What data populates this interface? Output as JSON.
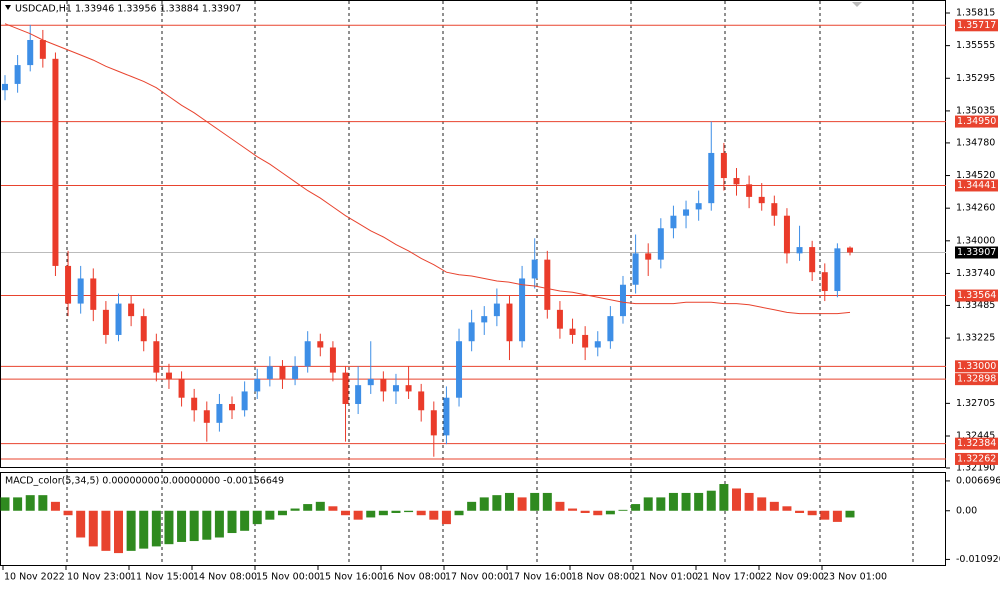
{
  "chart_data": {
    "type": "candlestick",
    "header": "USDCAD,H1  1.33946 1.33956 1.33884 1.33907",
    "bull_color": "#3d8ee6",
    "bear_color": "#ea3b2a",
    "ma_color": "#e8432e",
    "level_color": "#e8432e",
    "ylim": [
      1.3219,
      1.35815
    ],
    "yticks": [
      1.35815,
      1.35555,
      1.35295,
      1.35035,
      {
        "value": 1.3478,
        "label": "1.34780"
      },
      {
        "value": 1.3452,
        "label": "1.34520"
      },
      {
        "value": 1.3426,
        "label": "1.34260"
      },
      {
        "value": 1.34,
        "label": "1.34000"
      },
      {
        "value": 1.3374,
        "label": "1.33740"
      },
      1.33485,
      1.33225,
      1.32705,
      1.32445,
      {
        "value": 1.3219,
        "label": "1.32190"
      }
    ],
    "levels": [
      1.35717,
      {
        "value": 1.3495,
        "label": "1.34950"
      },
      1.34441,
      1.33564,
      {
        "value": 1.33,
        "label": "1.33000"
      },
      1.32898,
      1.32384,
      1.32262
    ],
    "current": 1.33907,
    "categories": [
      "10 Nov 2022",
      "10 Nov 23:00",
      "11 Nov 15:00",
      "14 Nov 08:00",
      "15 Nov 00:00",
      "15 Nov 16:00",
      "16 Nov 08:00",
      "17 Nov 00:00",
      "17 Nov 16:00",
      "18 Nov 08:00",
      "21 Nov 01:00",
      "21 Nov 17:00",
      "22 Nov 09:00",
      "23 Nov 01:00"
    ],
    "ohlc": [
      [
        1.352,
        1.3532,
        1.3512,
        1.3525
      ],
      [
        1.3525,
        1.3548,
        1.3518,
        1.354
      ],
      [
        1.354,
        1.3572,
        1.3535,
        1.356
      ],
      [
        1.356,
        1.3568,
        1.3538,
        1.3545
      ],
      [
        1.3545,
        1.355,
        1.3372,
        1.338
      ],
      [
        1.338,
        1.3392,
        1.334,
        1.335
      ],
      [
        1.335,
        1.338,
        1.3342,
        1.337
      ],
      [
        1.337,
        1.3378,
        1.3336,
        1.3345
      ],
      [
        1.3345,
        1.3352,
        1.3318,
        1.3325
      ],
      [
        1.3325,
        1.3358,
        1.332,
        1.335
      ],
      [
        1.335,
        1.3356,
        1.3332,
        1.334
      ],
      [
        1.334,
        1.3346,
        1.3312,
        1.332
      ],
      [
        1.332,
        1.3326,
        1.3288,
        1.3295
      ],
      [
        1.3295,
        1.3302,
        1.3282,
        1.329
      ],
      [
        1.329,
        1.3296,
        1.3268,
        1.3275
      ],
      [
        1.3275,
        1.3282,
        1.3256,
        1.3265
      ],
      [
        1.3265,
        1.3272,
        1.324,
        1.3255
      ],
      [
        1.3255,
        1.3278,
        1.3248,
        1.327
      ],
      [
        1.327,
        1.3276,
        1.3258,
        1.3265
      ],
      [
        1.3265,
        1.3288,
        1.326,
        1.328
      ],
      [
        1.328,
        1.3298,
        1.3274,
        1.329
      ],
      [
        1.329,
        1.3308,
        1.3284,
        1.33
      ],
      [
        1.33,
        1.3305,
        1.3282,
        1.329
      ],
      [
        1.329,
        1.3308,
        1.3285,
        1.33
      ],
      [
        1.33,
        1.3328,
        1.3295,
        1.332
      ],
      [
        1.332,
        1.3326,
        1.3308,
        1.3315
      ],
      [
        1.3315,
        1.332,
        1.3288,
        1.3295
      ],
      [
        1.3295,
        1.33,
        1.324,
        1.327
      ],
      [
        1.327,
        1.33,
        1.3262,
        1.3285
      ],
      [
        1.3285,
        1.332,
        1.3278,
        1.329
      ],
      [
        1.329,
        1.3296,
        1.3272,
        1.328
      ],
      [
        1.328,
        1.3294,
        1.327,
        1.3285
      ],
      [
        1.3285,
        1.33,
        1.3274,
        1.328
      ],
      [
        1.328,
        1.3286,
        1.3256,
        1.3265
      ],
      [
        1.3265,
        1.3272,
        1.3228,
        1.3245
      ],
      [
        1.3245,
        1.3284,
        1.3238,
        1.3275
      ],
      [
        1.3275,
        1.333,
        1.3268,
        1.332
      ],
      [
        1.332,
        1.3345,
        1.3312,
        1.3335
      ],
      [
        1.3335,
        1.3348,
        1.3325,
        1.334
      ],
      [
        1.334,
        1.3362,
        1.3332,
        1.335
      ],
      [
        1.335,
        1.3356,
        1.3305,
        1.332
      ],
      [
        1.332,
        1.338,
        1.3315,
        1.337
      ],
      [
        1.337,
        1.3402,
        1.3362,
        1.3385
      ],
      [
        1.3385,
        1.3392,
        1.3338,
        1.3345
      ],
      [
        1.3345,
        1.3352,
        1.3322,
        1.333
      ],
      [
        1.333,
        1.3338,
        1.3318,
        1.3325
      ],
      [
        1.3325,
        1.3332,
        1.3305,
        1.3315
      ],
      [
        1.3315,
        1.3328,
        1.3308,
        1.332
      ],
      [
        1.332,
        1.3348,
        1.3314,
        1.334
      ],
      [
        1.334,
        1.3372,
        1.3334,
        1.3365
      ],
      [
        1.3365,
        1.3405,
        1.3358,
        1.339
      ],
      [
        1.339,
        1.3398,
        1.3372,
        1.3385
      ],
      [
        1.3385,
        1.3418,
        1.3378,
        1.341
      ],
      [
        1.341,
        1.3428,
        1.3402,
        1.342
      ],
      [
        1.342,
        1.3432,
        1.341,
        1.3425
      ],
      [
        1.3425,
        1.344,
        1.3416,
        1.343
      ],
      [
        1.343,
        1.3495,
        1.3424,
        1.347
      ],
      [
        1.347,
        1.3478,
        1.344,
        1.345
      ],
      [
        1.345,
        1.3458,
        1.3436,
        1.3445
      ],
      [
        1.3445,
        1.3452,
        1.3426,
        1.3435
      ],
      [
        1.3435,
        1.3446,
        1.3424,
        1.343
      ],
      [
        1.343,
        1.3436,
        1.3412,
        1.342
      ],
      [
        1.342,
        1.3426,
        1.3382,
        1.339
      ],
      [
        1.339,
        1.3412,
        1.3384,
        1.3395
      ],
      [
        1.3395,
        1.34,
        1.3368,
        1.3375
      ],
      [
        1.3375,
        1.3382,
        1.3352,
        1.336
      ],
      [
        1.336,
        1.3398,
        1.3355,
        1.3394
      ],
      [
        1.33946,
        1.33956,
        1.33884,
        1.33907
      ]
    ],
    "ma": [
      1.3573,
      1.3569,
      1.3565,
      1.356,
      1.3556,
      1.3552,
      1.3548,
      1.3544,
      1.3539,
      1.3535,
      1.3531,
      1.3527,
      1.3522,
      1.3515,
      1.3508,
      1.3502,
      1.3495,
      1.3488,
      1.3481,
      1.3474,
      1.3467,
      1.3461,
      1.3454,
      1.3447,
      1.344,
      1.3434,
      1.3427,
      1.342,
      1.3414,
      1.3408,
      1.3403,
      1.3397,
      1.3392,
      1.3386,
      1.3381,
      1.3375,
      1.3373,
      1.3372,
      1.337,
      1.3368,
      1.3367,
      1.3365,
      1.3364,
      1.3362,
      1.336,
      1.3359,
      1.3357,
      1.3355,
      1.3353,
      1.3351,
      1.335,
      1.335,
      1.335,
      1.335,
      1.3351,
      1.3351,
      1.3351,
      1.335,
      1.335,
      1.3349,
      1.3347,
      1.3345,
      1.3343,
      1.3342,
      1.3342,
      1.3342,
      1.3342,
      1.3343
    ],
    "macd": {
      "title": "MACD_color(5,34,5) 0.00000000 0.00000000 -0.00156649",
      "up_color": "#2f8a1f",
      "down_color": "#e8432e",
      "ylim": [
        -0.0115,
        0.0078
      ],
      "yticks": [
        0.0066968,
        {
          "value": 0,
          "label": "0.00"
        },
        -0.0109203
      ],
      "values": [
        0.003,
        0.003,
        0.0035,
        0.0035,
        0.002,
        -0.001,
        -0.006,
        -0.008,
        -0.009,
        -0.0095,
        -0.009,
        -0.0085,
        -0.008,
        -0.0075,
        -0.007,
        -0.0068,
        -0.0065,
        -0.006,
        -0.005,
        -0.0045,
        -0.003,
        -0.002,
        -0.001,
        0.0005,
        0.0015,
        0.002,
        0.001,
        -0.001,
        -0.002,
        -0.0015,
        -0.001,
        -0.0005,
        -0.0003,
        -0.001,
        -0.002,
        -0.003,
        -0.001,
        0.002,
        0.003,
        0.0035,
        0.004,
        0.003,
        0.004,
        0.004,
        0.002,
        0.0005,
        -0.0005,
        -0.001,
        -0.0008,
        0.0002,
        0.0015,
        0.003,
        0.003,
        0.004,
        0.004,
        0.004,
        0.0045,
        0.006,
        0.005,
        0.004,
        0.003,
        0.002,
        0.001,
        -0.0005,
        -0.001,
        -0.002,
        -0.0025,
        -0.0015
      ]
    }
  }
}
